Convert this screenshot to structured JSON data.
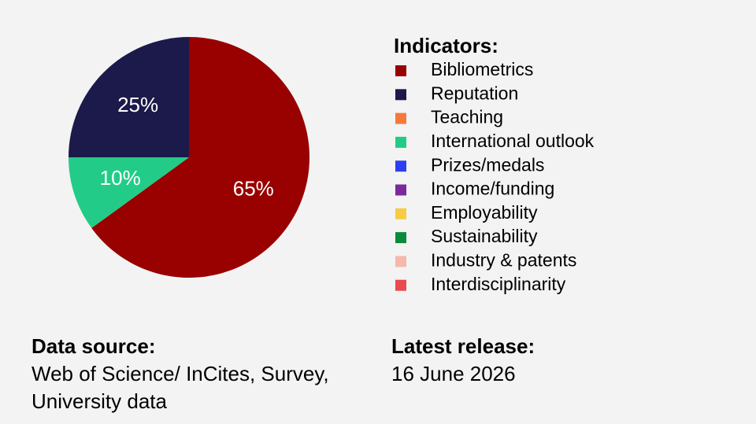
{
  "chart_data": {
    "type": "pie",
    "legend_title": "Indicators:",
    "categories": [
      "Bibliometrics",
      "Reputation",
      "Teaching",
      "International outlook",
      "Prizes/medals",
      "Income/funding",
      "Employability",
      "Sustainability",
      "Industry & patents",
      "Interdisciplinarity"
    ],
    "colors": [
      "#990000",
      "#1c1a4a",
      "#f47a3c",
      "#22cc88",
      "#2d3ff0",
      "#7b2a9a",
      "#f5cc44",
      "#0a8a3a",
      "#f5b8aa",
      "#e84a50"
    ],
    "values": [
      65,
      25,
      null,
      10,
      null,
      null,
      null,
      null,
      null,
      null
    ],
    "value_labels": [
      "65%",
      "25%",
      null,
      "10%",
      null,
      null,
      null,
      null,
      null,
      null
    ]
  },
  "source": {
    "title": "Data source:",
    "lines": [
      "Web of Science/ InCites, Survey,",
      "University data"
    ]
  },
  "release": {
    "title": "Latest release:",
    "date": "16 June 2026"
  }
}
